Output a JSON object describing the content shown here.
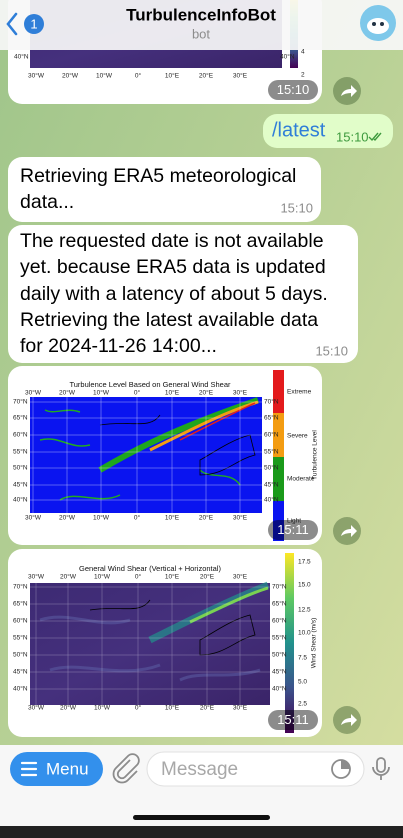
{
  "header": {
    "back_count": "1",
    "title": "TurbulenceInfoBot",
    "subtitle": "bot"
  },
  "messages": [
    {
      "kind": "image",
      "lat_labels": [
        "40°N"
      ],
      "lon_labels": [
        "30°W",
        "20°W",
        "10°W",
        "0°",
        "10°E",
        "20°E",
        "30°E"
      ],
      "colorbar_ticks": [
        "4",
        "2"
      ],
      "time": "15:10"
    },
    {
      "kind": "outgoing",
      "text": "/latest",
      "time": "15:10"
    },
    {
      "kind": "text",
      "lines": [
        "Retrieving ERA5 meteorological",
        "data..."
      ],
      "time": "15:10"
    },
    {
      "kind": "text",
      "lines": [
        "The requested date is not available",
        "yet. because ERA5 data is updated",
        "daily with a latency of about 5 days.",
        "Retrieving the latest available data",
        "for 2024-11-26 14:00..."
      ],
      "time": "15:10"
    },
    {
      "kind": "image",
      "title": "Turbulence Level Based on General Wind Shear",
      "lat_labels": [
        "70°N",
        "65°N",
        "60°N",
        "55°N",
        "50°N",
        "45°N",
        "40°N"
      ],
      "lon_labels": [
        "30°W",
        "20°W",
        "10°W",
        "0°",
        "10°E",
        "20°E",
        "30°E"
      ],
      "colorbar_ticks": [
        "Extreme",
        "Severe",
        "Moderate",
        "Light"
      ],
      "colorbar_label": "Turbulence Level",
      "time": "15:11"
    },
    {
      "kind": "image",
      "title": "General Wind Shear (Vertical + Horizontal)",
      "lat_labels": [
        "70°N",
        "65°N",
        "60°N",
        "55°N",
        "50°N",
        "45°N",
        "40°N"
      ],
      "lon_labels": [
        "30°W",
        "20°W",
        "10°W",
        "0°",
        "10°E",
        "20°E",
        "30°E"
      ],
      "colorbar_ticks": [
        "17.5",
        "15.0",
        "12.5",
        "10.0",
        "7.5",
        "5.0",
        "2.5"
      ],
      "colorbar_label": "Wind Shear (m/s)",
      "time": "15:11"
    }
  ],
  "input_bar": {
    "menu": "Menu",
    "placeholder": "Message"
  }
}
